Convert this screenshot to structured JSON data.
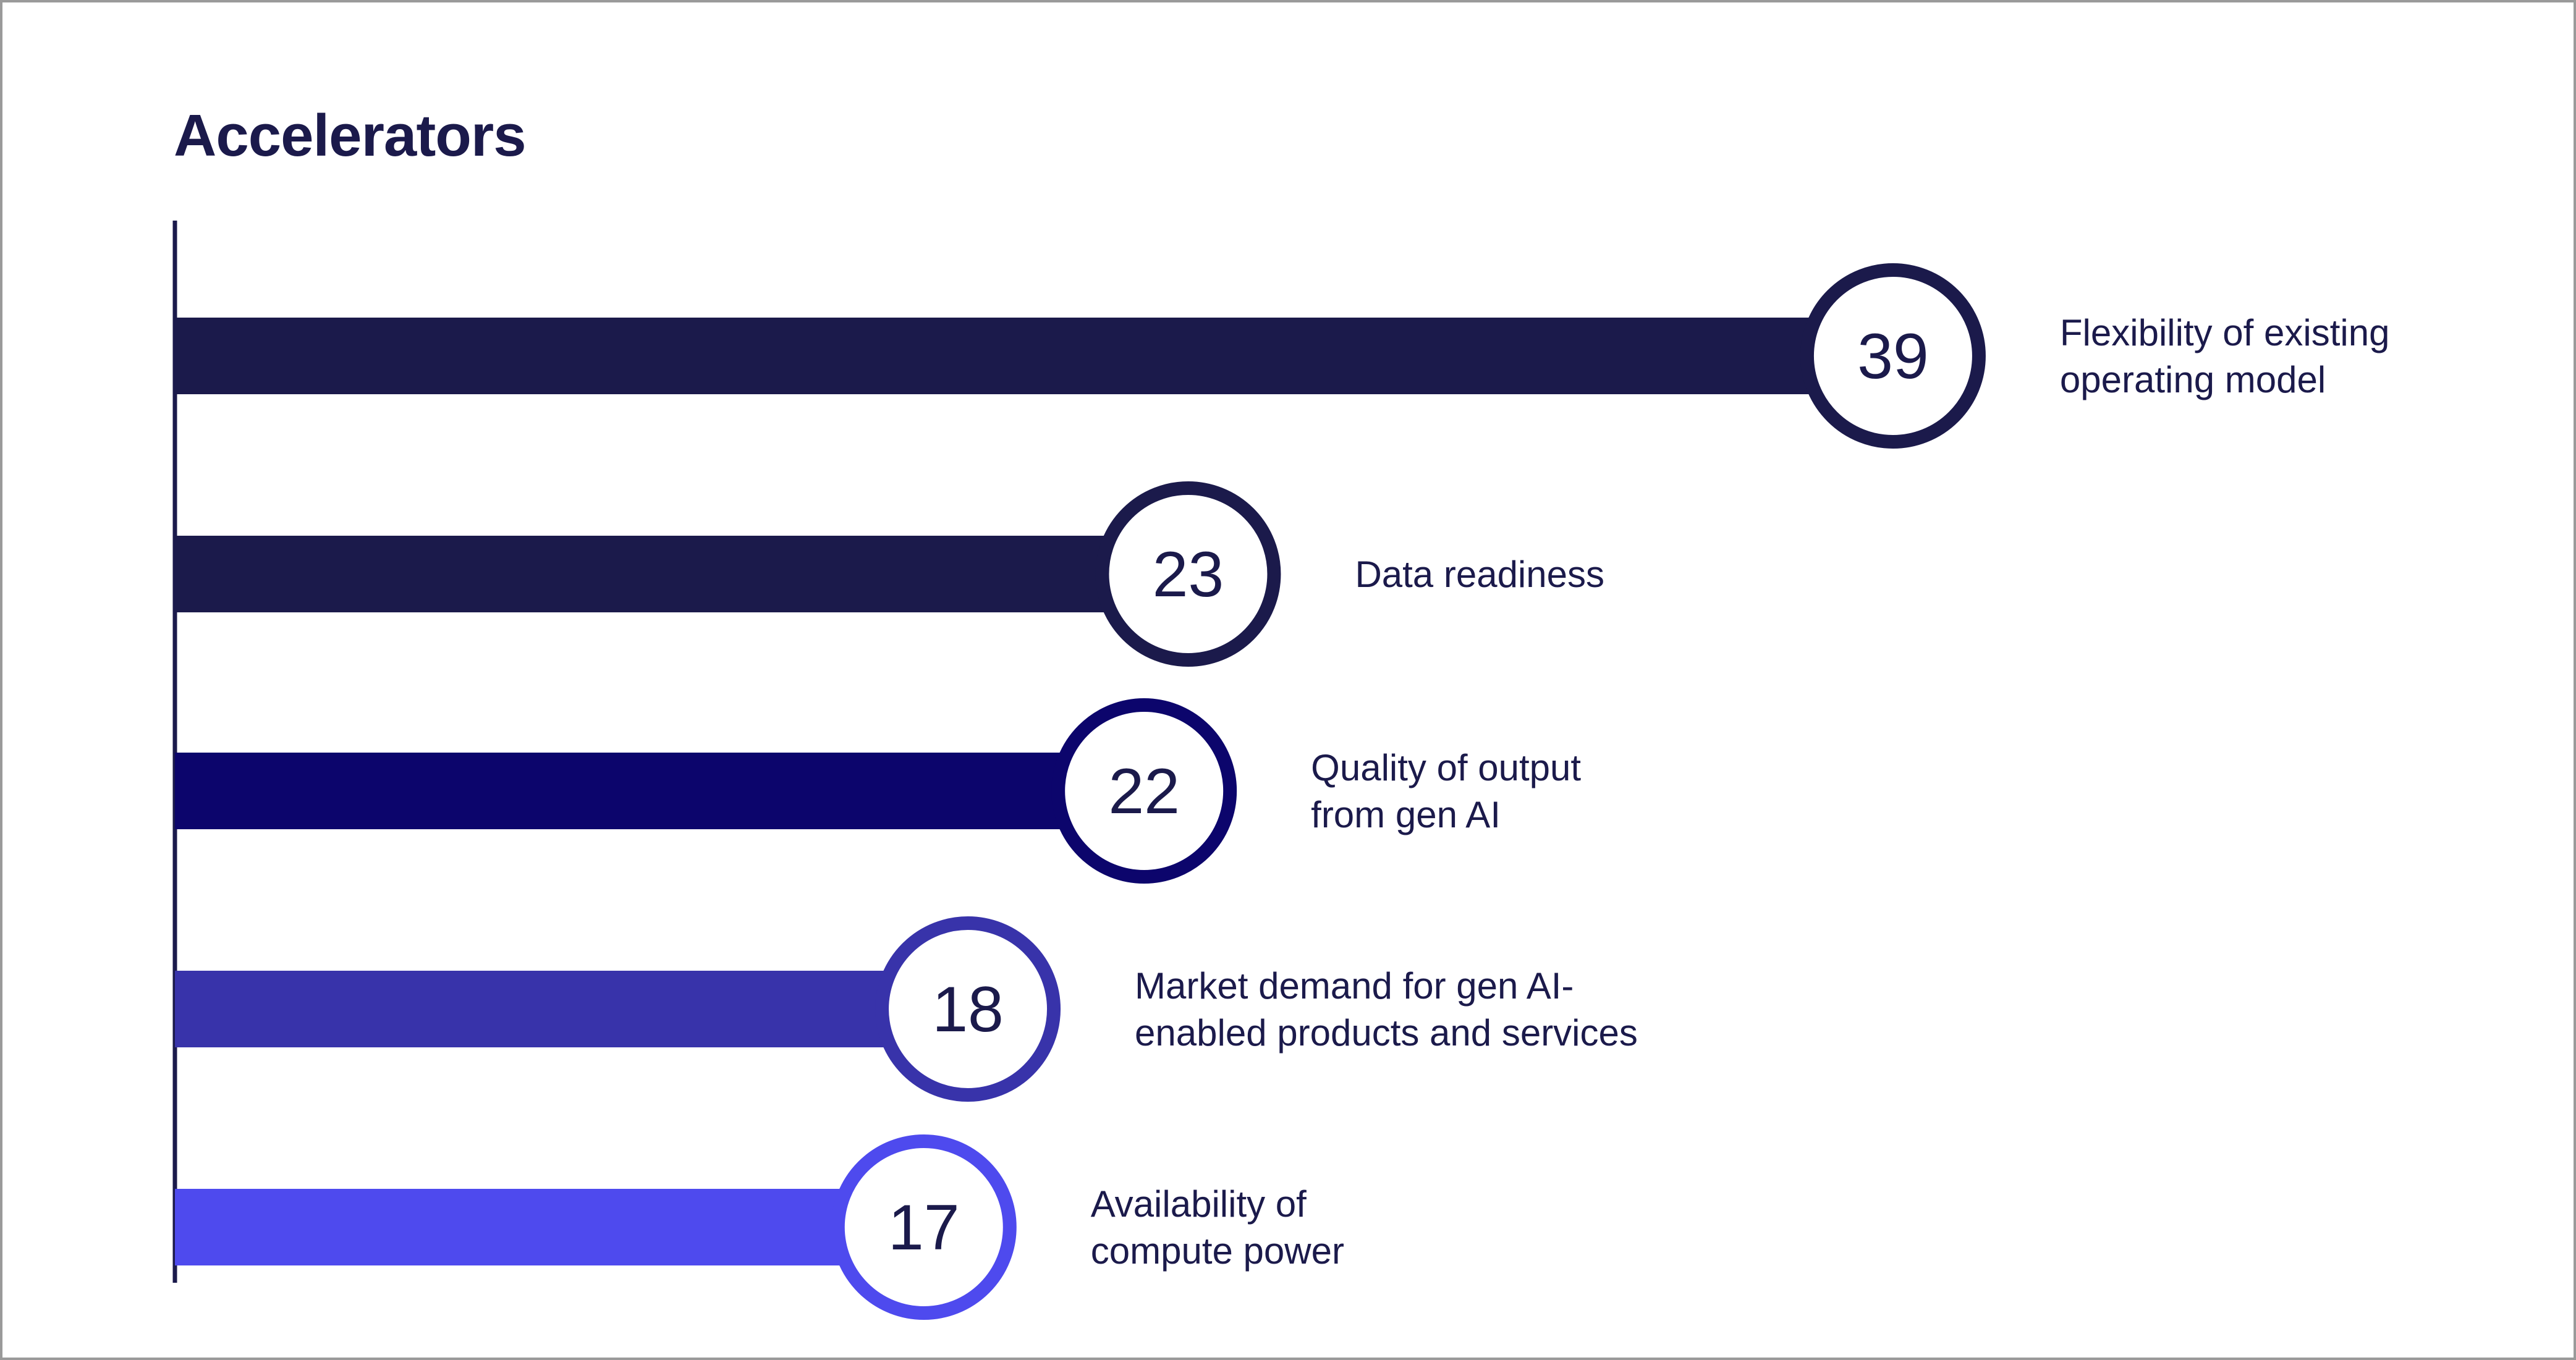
{
  "chart_data": {
    "type": "bar",
    "orientation": "horizontal",
    "title": "Accelerators",
    "xlabel": "",
    "ylabel": "",
    "xlim": [
      0,
      39
    ],
    "legend": "none",
    "grid": false,
    "bars": [
      {
        "value": 39,
        "value_label": "39",
        "label_lines": [
          "Flexibility of existing",
          "operating model"
        ],
        "color": "#1b1a4b"
      },
      {
        "value": 23,
        "value_label": "23",
        "label_lines": [
          "Data readiness"
        ],
        "color": "#1b1a4b"
      },
      {
        "value": 22,
        "value_label": "22",
        "label_lines": [
          "Quality of output",
          "from gen AI"
        ],
        "color": "#0c056c"
      },
      {
        "value": 18,
        "value_label": "18",
        "label_lines": [
          "Market demand for gen AI-",
          "enabled products and services"
        ],
        "color": "#3833aa"
      },
      {
        "value": 17,
        "value_label": "17",
        "label_lines": [
          "Availability of",
          "compute power"
        ],
        "color": "#4e4aee"
      }
    ]
  },
  "colors": {
    "text": "#1b1a4b",
    "axis": "#1b1a4b",
    "background": "#ffffff",
    "frame": "#9a9a9a"
  }
}
